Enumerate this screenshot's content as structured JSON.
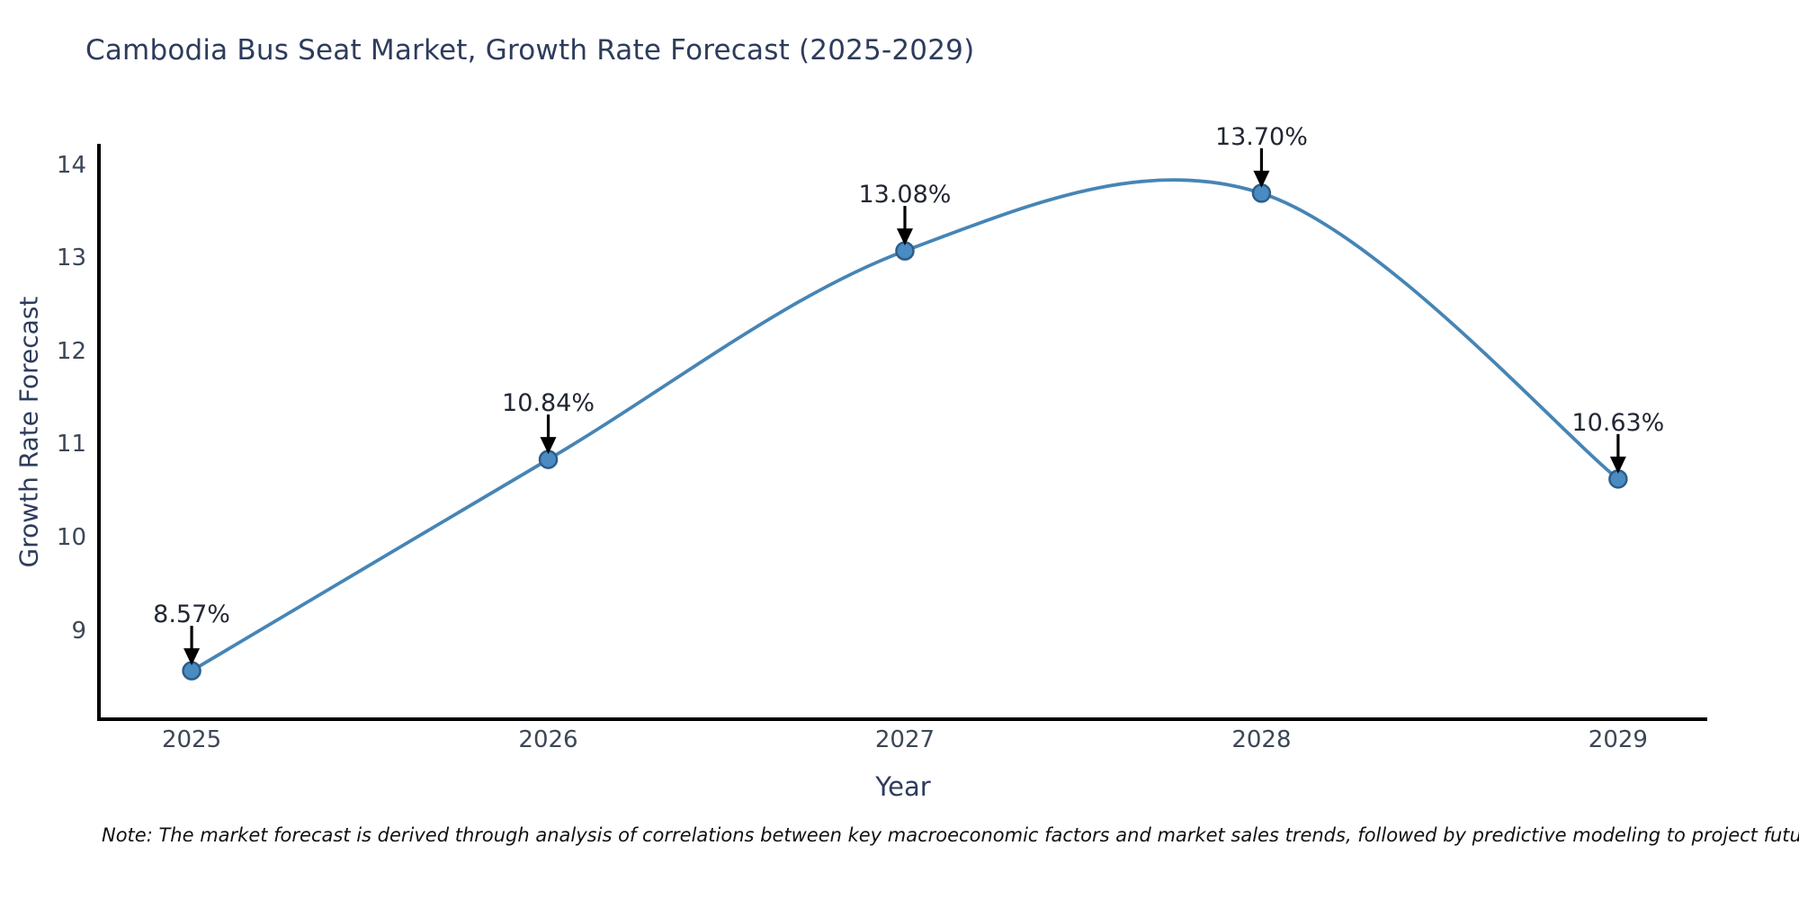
{
  "title": "Cambodia Bus Seat Market, Growth Rate Forecast (2025-2029)",
  "note": "Note: The market forecast is derived through analysis of correlations between key macroeconomic factors and market sales trends, followed by predictive modeling to project future sales",
  "colors": {
    "line": "#4685b5",
    "marker_fill": "#4a8bc2",
    "marker_edge": "#2e5d87",
    "axis": "#000000",
    "title_text": "#2e3c5c",
    "tick_text": "#3c4757",
    "annotation_text": "#222733"
  },
  "chart_data": {
    "type": "line",
    "title": "Cambodia Bus Seat Market, Growth Rate Forecast (2025-2029)",
    "xlabel": "Year",
    "ylabel": "Growth Rate Forecast",
    "x": [
      2025,
      2026,
      2027,
      2028,
      2029
    ],
    "values": [
      8.57,
      10.84,
      13.08,
      13.7,
      10.63
    ],
    "point_labels": [
      "8.57%",
      "10.84%",
      "13.08%",
      "13.70%",
      "10.63%"
    ],
    "yticks": [
      9,
      10,
      11,
      12,
      13,
      14
    ],
    "ylim": [
      8.05,
      14.23
    ],
    "xlim": [
      2024.74,
      2029.25
    ],
    "line_shape": "spline",
    "grid": false,
    "legend": false
  }
}
